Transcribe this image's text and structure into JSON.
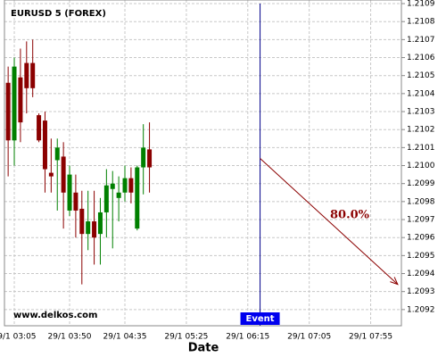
{
  "chart_data": {
    "type": "candlestick",
    "title": "EURUSD 5 (FOREX)",
    "xlabel": "Date",
    "watermark": "www.delkos.com",
    "x": [
      "29/1 03:00",
      "29/1 03:05",
      "29/1 03:10",
      "29/1 03:15",
      "29/1 03:20",
      "29/1 03:25",
      "29/1 03:30",
      "29/1 03:35",
      "29/1 03:40",
      "29/1 03:45",
      "29/1 03:50",
      "29/1 03:55",
      "29/1 04:00",
      "29/1 04:05",
      "29/1 04:10",
      "29/1 04:15",
      "29/1 04:20",
      "29/1 04:25",
      "29/1 04:30",
      "29/1 04:35",
      "29/1 04:40",
      "29/1 04:45",
      "29/1 04:50",
      "29/1 04:55"
    ],
    "open": [
      1.21046,
      1.21014,
      1.21049,
      1.21057,
      1.21057,
      1.21028,
      1.21025,
      1.20996,
      1.21003,
      1.21005,
      1.20975,
      1.20985,
      1.20976,
      1.20962,
      1.20969,
      1.20962,
      1.20974,
      1.20987,
      1.20982,
      1.20985,
      1.20993,
      1.20965,
      1.20999,
      1.21009
    ],
    "high": [
      1.21055,
      1.2106,
      1.21065,
      1.21069,
      1.2107,
      1.21029,
      1.2103,
      1.21015,
      1.21015,
      1.21013,
      1.21,
      1.20995,
      1.20986,
      1.20986,
      1.20986,
      1.20982,
      1.20998,
      1.20997,
      1.20994,
      1.21,
      1.20999,
      1.21,
      1.21023,
      1.21024
    ],
    "low": [
      1.20994,
      1.21,
      1.21013,
      1.21029,
      1.21038,
      1.21013,
      1.20985,
      1.20985,
      1.20975,
      1.20965,
      1.20972,
      1.2096,
      1.20934,
      1.20953,
      1.20945,
      1.20945,
      1.2096,
      1.20954,
      1.20969,
      1.2098,
      1.20979,
      1.20964,
      1.20984,
      1.20985
    ],
    "close": [
      1.21014,
      1.21055,
      1.21024,
      1.21043,
      1.21043,
      1.21014,
      1.20998,
      1.20994,
      1.2101,
      1.20985,
      1.20995,
      1.20975,
      1.20962,
      1.20969,
      1.2096,
      1.20974,
      1.20989,
      1.2099,
      1.20985,
      1.20993,
      1.20985,
      1.20999,
      1.2101,
      1.20999
    ],
    "up_color": "#008000",
    "down_color": "#8b0000",
    "event": {
      "x": "29/1 06:25",
      "label": "Event",
      "color": "#00008b"
    },
    "projection": {
      "x": [
        "29/1 06:25",
        "29/1 08:17"
      ],
      "values": [
        1.21004,
        1.20934
      ],
      "label": "80.0%",
      "color": "#8b0000"
    },
    "xlim": [
      "29/1 02:57",
      "29/1 08:20"
    ],
    "xticks": [
      "29/1 03:05",
      "29/1 03:50",
      "29/1 04:35",
      "29/1 05:25",
      "29/1 06:15",
      "29/1 07:05",
      "29/1 07:55"
    ],
    "ylim": [
      1.20911,
      1.21092
    ],
    "yticks": [
      1.2092,
      1.2093,
      1.2094,
      1.2095,
      1.2096,
      1.2097,
      1.2098,
      1.2099,
      {
        "value": 1.21,
        "label": "1.2100"
      },
      1.2101,
      1.2102,
      1.2103,
      1.2104,
      1.2105,
      1.2106,
      1.2107,
      1.2108,
      1.2109
    ],
    "grid": true
  }
}
